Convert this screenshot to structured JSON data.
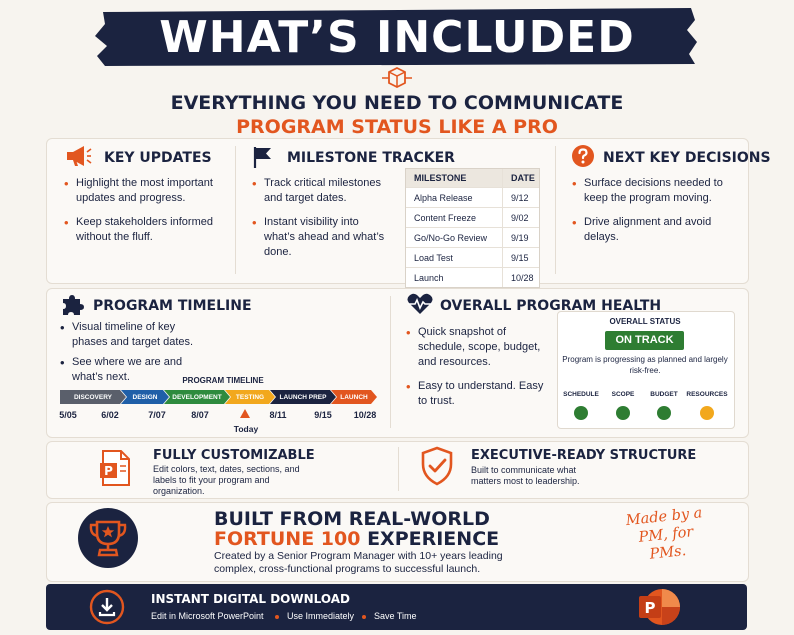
{
  "header": {
    "title": "WHAT’S INCLUDED",
    "subtitle_line1": "EVERYTHING YOU NEED TO COMMUNICATE",
    "subtitle_line2": "PROGRAM STATUS LIKE A PRO"
  },
  "colors": {
    "navy": "#1b2340",
    "orange": "#e2561f",
    "green": "#2e7d32",
    "amber": "#f2a81d"
  },
  "key_updates": {
    "title": "KEY UPDATES",
    "bullets": [
      "Highlight the most important updates and progress.",
      "Keep stakeholders informed without the fluff."
    ]
  },
  "milestone_tracker": {
    "title": "MILESTONE TRACKER",
    "bullets": [
      "Track critical milestones and target dates.",
      "Instant visibility into what’s ahead and what’s done."
    ],
    "table": {
      "headers": [
        "MILESTONE",
        "DATE"
      ],
      "rows": [
        [
          "Alpha Release",
          "9/12"
        ],
        [
          "Content Freeze",
          "9/02"
        ],
        [
          "Go/No-Go Review",
          "9/19"
        ],
        [
          "Load Test",
          "9/15"
        ],
        [
          "Launch",
          "10/28"
        ]
      ]
    }
  },
  "next_decisions": {
    "title": "NEXT KEY DECISIONS",
    "bullets": [
      "Surface decisions needed to keep the program moving.",
      "Drive alignment and avoid delays."
    ]
  },
  "program_timeline": {
    "title": "PROGRAM TIMELINE",
    "bullets": [
      "Visual timeline of key phases and target dates.",
      "See where we are and what’s next."
    ],
    "chart_title": "PROGRAM TIMELINE",
    "phases": [
      "DISCOVERY",
      "DESIGN",
      "DEVELOPMENT",
      "TESTING",
      "LAUNCH PREP",
      "LAUNCH"
    ],
    "dates": [
      "5/05",
      "6/02",
      "7/07",
      "8/07",
      "8/11",
      "9/15",
      "10/28"
    ],
    "today_label": "Today"
  },
  "program_health": {
    "title": "OVERALL PROGRAM HEALTH",
    "bullets": [
      "Quick snapshot of schedule, scope, budget, and resources.",
      "Easy to understand. Easy to trust."
    ],
    "status_label": "OVERALL STATUS",
    "status_value": "ON TRACK",
    "status_text": "Program is progressing as planned and largely risk-free.",
    "dimensions": [
      {
        "label": "SCHEDULE",
        "status": "green"
      },
      {
        "label": "SCOPE",
        "status": "green"
      },
      {
        "label": "BUDGET",
        "status": "green"
      },
      {
        "label": "RESOURCES",
        "status": "amber"
      }
    ]
  },
  "customizable": {
    "title": "FULLY CUSTOMIZABLE",
    "text": "Edit colors, text, dates, sections, and labels to fit your program and organization."
  },
  "executive": {
    "title": "EXECUTIVE-READY STRUCTURE",
    "text": "Built to communicate what matters most to leadership."
  },
  "built_from": {
    "line1": "BUILT FROM REAL-WORLD",
    "line2_orange": "FORTUNE 100",
    "line2_rest": "EXPERIENCE",
    "text": "Created by a Senior Program Manager with 10+ years leading complex, cross-functional programs to successful launch.",
    "handwritten": "Made by a PM, for PMs."
  },
  "download": {
    "title": "INSTANT DIGITAL DOWNLOAD",
    "items": [
      "Edit in Microsoft PowerPoint",
      "Use Immediately",
      "Save Time"
    ]
  }
}
